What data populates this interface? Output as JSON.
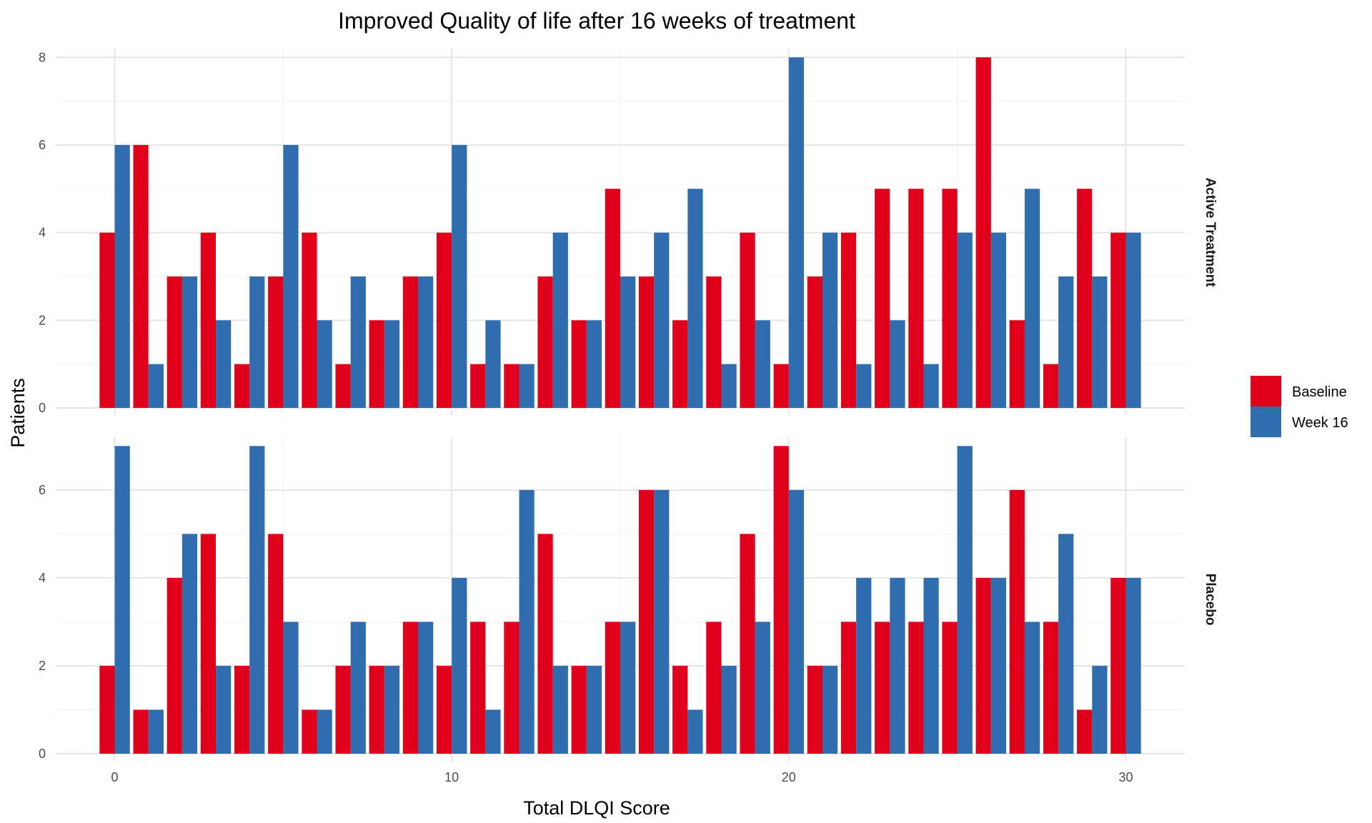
{
  "chart_data": {
    "type": "bar",
    "title": "Improved Quality of life after 16 weeks of treatment",
    "xlabel": "Total DLQI Score",
    "ylabel": "Patients",
    "x": [
      0,
      1,
      2,
      3,
      4,
      5,
      6,
      7,
      8,
      9,
      10,
      11,
      12,
      13,
      14,
      15,
      16,
      17,
      18,
      19,
      20,
      21,
      22,
      23,
      24,
      25,
      26,
      27,
      28,
      29,
      30
    ],
    "x_ticks": [
      0,
      10,
      20,
      30
    ],
    "xlim": [
      -1.75,
      31.75
    ],
    "grid": true,
    "legend_position": "right",
    "colors": {
      "Baseline": "#E0001B",
      "Week 16": "#2F6DAE"
    },
    "panels": [
      {
        "label": "Active Treatment",
        "ylim": [
          0,
          8.2
        ],
        "y_ticks": [
          0,
          2,
          4,
          6,
          8
        ],
        "series": [
          {
            "name": "Baseline",
            "values": [
              4,
              6,
              3,
              4,
              1,
              3,
              4,
              1,
              2,
              3,
              4,
              1,
              1,
              3,
              2,
              5,
              3,
              2,
              3,
              4,
              1,
              3,
              4,
              5,
              5,
              5,
              8,
              2,
              1,
              5,
              4
            ]
          },
          {
            "name": "Week 16",
            "values": [
              6,
              1,
              3,
              2,
              3,
              6,
              2,
              3,
              2,
              3,
              6,
              2,
              1,
              4,
              2,
              3,
              4,
              5,
              1,
              2,
              8,
              4,
              1,
              2,
              1,
              4,
              4,
              5,
              3,
              3,
              4
            ]
          }
        ]
      },
      {
        "label": "Placebo",
        "ylim": [
          0,
          7.2
        ],
        "y_ticks": [
          0,
          2,
          4,
          6
        ],
        "series": [
          {
            "name": "Baseline",
            "values": [
              2,
              1,
              4,
              5,
              2,
              5,
              1,
              2,
              2,
              3,
              2,
              3,
              3,
              5,
              2,
              3,
              6,
              2,
              3,
              5,
              7,
              2,
              3,
              3,
              3,
              3,
              4,
              6,
              3,
              1,
              4
            ]
          },
          {
            "name": "Week 16",
            "values": [
              7,
              1,
              5,
              2,
              7,
              3,
              1,
              3,
              2,
              3,
              4,
              1,
              6,
              2,
              2,
              3,
              6,
              1,
              2,
              3,
              6,
              2,
              4,
              4,
              4,
              7,
              4,
              3,
              5,
              2,
              4
            ]
          }
        ]
      }
    ]
  }
}
